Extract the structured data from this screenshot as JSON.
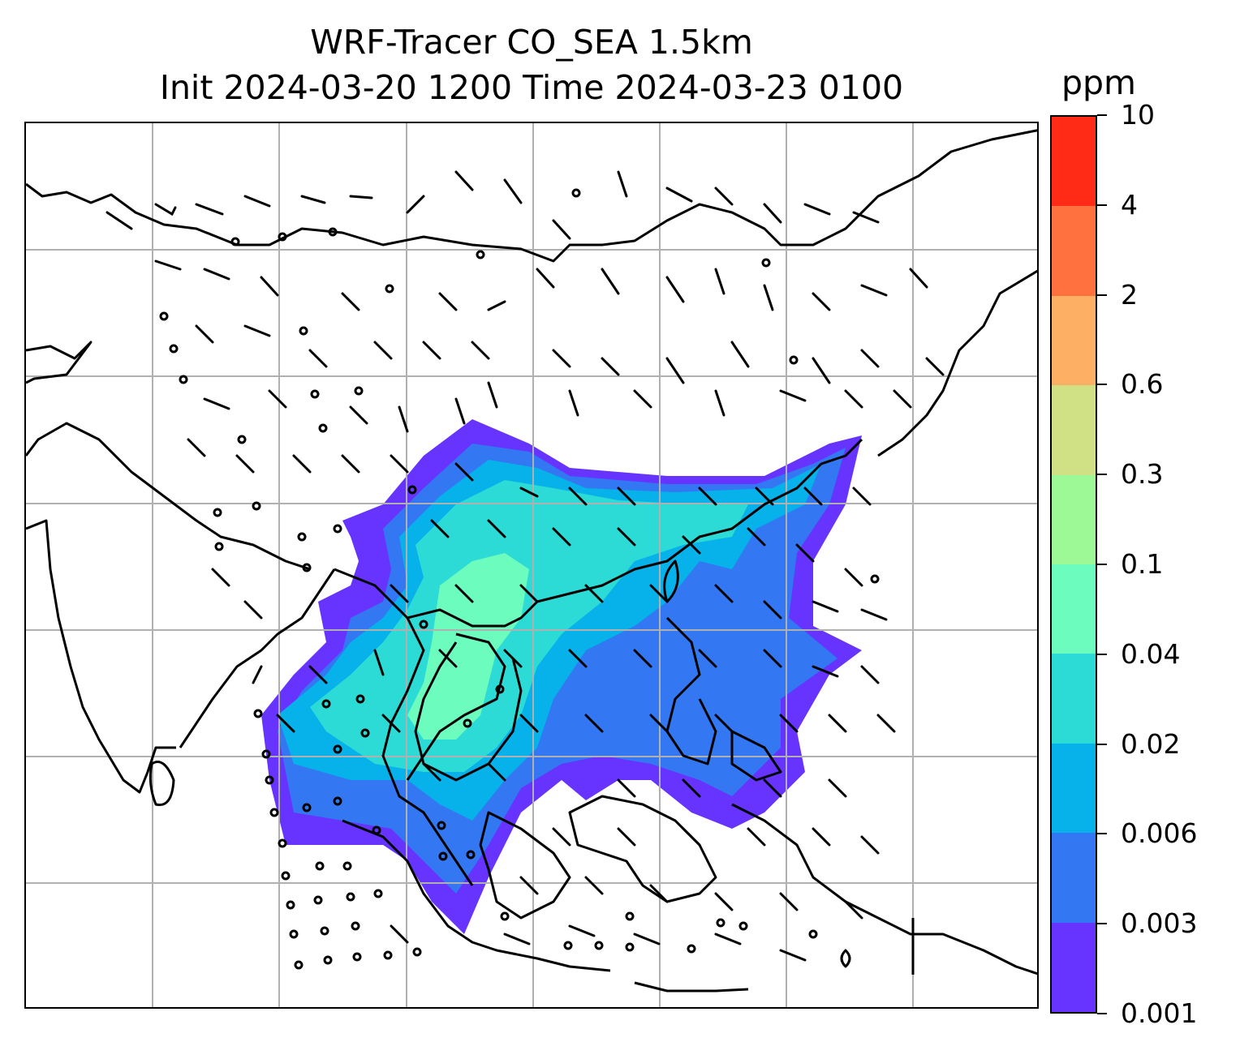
{
  "title": {
    "line1": "WRF-Tracer CO_SEA 1.5km",
    "line2": "Init 2024-03-20 1200 Time 2024-03-23 0100"
  },
  "colorbar": {
    "unit": "ppm",
    "levels": [
      "0.001",
      "0.003",
      "0.006",
      "0.02",
      "0.04",
      "0.1",
      "0.3",
      "0.6",
      "2",
      "4",
      "10"
    ],
    "colors": [
      "#6633ff",
      "#3377f2",
      "#07b1e9",
      "#2cdbd5",
      "#6bfcbe",
      "#9cf996",
      "#cfe085",
      "#fdb063",
      "#ff723f",
      "#ff2b17"
    ]
  },
  "map": {
    "gridlines": true,
    "coastline_color": "#000000",
    "grid_color": "#b0b0b0",
    "wind_barbs": true,
    "calm_markers": true
  }
}
